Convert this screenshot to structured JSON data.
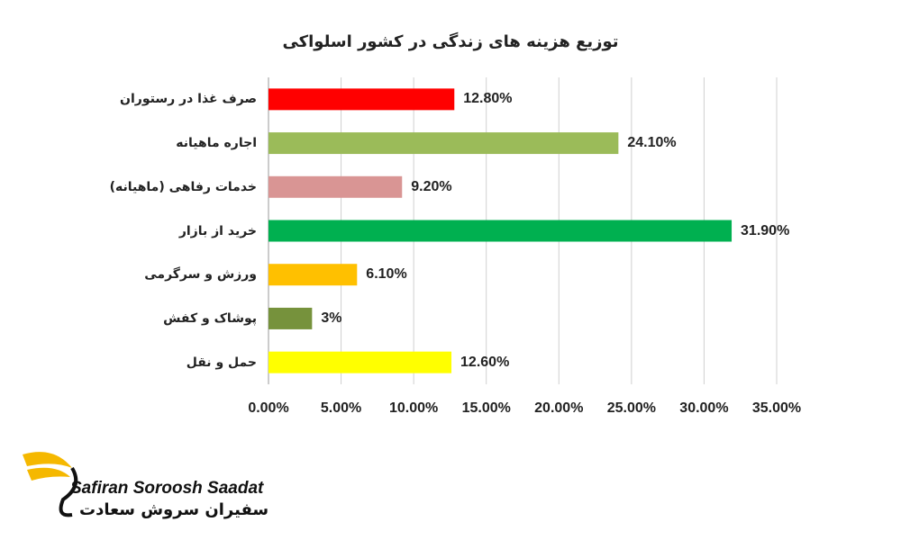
{
  "chart_data": {
    "type": "barh",
    "title": "توزیع هزینه های زندگی در کشور اسلواکی",
    "categories": [
      "صرف غذا در رستوران",
      "اجاره ماهیانه",
      "خدمات رفاهی (ماهیانه)",
      "خرید از بازار",
      "ورزش و سرگرمی",
      "پوشاک و کفش",
      "حمل و نقل"
    ],
    "values": [
      12.8,
      24.1,
      9.2,
      31.9,
      6.1,
      3,
      12.6
    ],
    "value_labels": [
      "12.80%",
      "24.10%",
      "9.20%",
      "31.90%",
      "6.10%",
      "3%",
      "12.60%"
    ],
    "colors": [
      "#ff0000",
      "#9bbb59",
      "#d99594",
      "#00b050",
      "#ffc000",
      "#76923c",
      "#ffff00"
    ],
    "xlim": [
      0,
      35
    ],
    "xticks": [
      {
        "value": 0,
        "label": "0.00%"
      },
      {
        "value": 5,
        "label": "5.00%"
      },
      {
        "value": 10,
        "label": "10.00%"
      },
      {
        "value": 15,
        "label": "15.00%"
      },
      {
        "value": 20,
        "label": "20.00%"
      },
      {
        "value": 25,
        "label": "25.00%"
      },
      {
        "value": 30,
        "label": "30.00%"
      },
      {
        "value": 35,
        "label": "35.00%"
      }
    ],
    "grid": true
  },
  "logo": {
    "text": "Safiran Soroosh Saadat",
    "subtext": "سفیران سروش سعادت"
  }
}
